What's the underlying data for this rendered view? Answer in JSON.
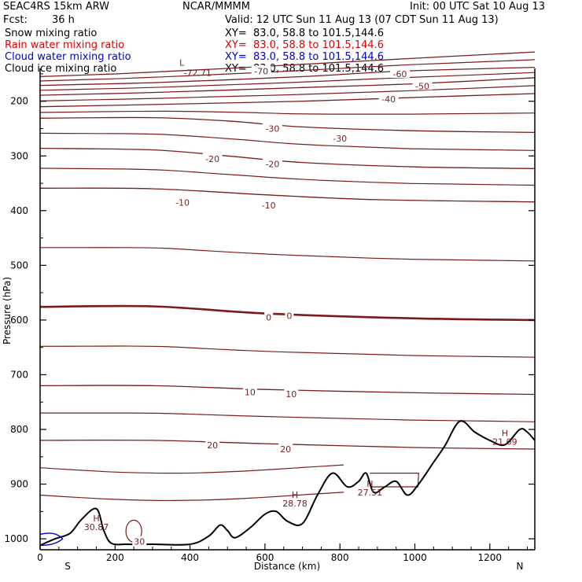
{
  "header": {
    "model": "SEAC4RS 15km ARW",
    "center": "NCAR/MMMM",
    "init": "Init: 00 UTC Sat 10 Aug 13",
    "fcst_label": "Fcst:",
    "fcst_value": "36 h",
    "valid": "Valid: 12 UTC Sun 11 Aug 13 (07 CDT Sun 11 Aug 13)",
    "fields": [
      {
        "name": "Snow mixing ratio",
        "xy": "XY=  83.0, 58.8 to 101.5,144.6",
        "color": "#000000"
      },
      {
        "name": "Rain water mixing ratio",
        "xy": "XY=  83.0, 58.8 to 101.5,144.6",
        "color": "#e00000"
      },
      {
        "name": "Cloud water mixing ratio",
        "xy": "XY=  83.0, 58.8 to 101.5,144.6",
        "color": "#0000cc"
      },
      {
        "name": "Cloud ice mixing ratio",
        "xy": "XY=  83.0, 58.8 to 101.5,144.6",
        "color": "#000000"
      }
    ]
  },
  "chart_data": {
    "type": "line",
    "subtype": "cross-section contour",
    "xlabel": "Distance (km)",
    "ylabel": "Pressure (hPa)",
    "xlim": [
      0,
      1320
    ],
    "ylim": [
      1020,
      140
    ],
    "y_inverted": true,
    "x_ticks": [
      0,
      200,
      400,
      600,
      800,
      1000,
      1200
    ],
    "y_ticks": [
      200,
      300,
      400,
      500,
      600,
      700,
      800,
      900,
      1000
    ],
    "endpoint_labels": {
      "left": "S",
      "right": "N"
    },
    "contour_color": "#7b1c1c",
    "terrain_color": "#000000",
    "isotherms": [
      {
        "label": "-70",
        "points": [
          [
            0,
            155
          ],
          [
            200,
            150
          ],
          [
            500,
            140
          ],
          [
            900,
            125
          ],
          [
            1320,
            110
          ]
        ]
      },
      {
        "label": "-60",
        "points": [
          [
            0,
            171
          ],
          [
            300,
            166
          ],
          [
            700,
            155
          ],
          [
            960,
            145
          ],
          [
            1320,
            138
          ]
        ]
      },
      {
        "label": "-50",
        "points": [
          [
            0,
            189
          ],
          [
            300,
            184
          ],
          [
            700,
            175
          ],
          [
            1000,
            168
          ],
          [
            1320,
            157
          ]
        ]
      },
      {
        "label": "-40",
        "points": [
          [
            0,
            210
          ],
          [
            300,
            206
          ],
          [
            700,
            200
          ],
          [
            1000,
            193
          ],
          [
            1320,
            186
          ]
        ]
      },
      {
        "label": "-30",
        "points": [
          [
            0,
            231
          ],
          [
            300,
            230
          ],
          [
            500,
            236
          ],
          [
            700,
            247
          ],
          [
            1000,
            254
          ],
          [
            1320,
            257
          ]
        ]
      },
      {
        "label": "-20",
        "points": [
          [
            0,
            286
          ],
          [
            300,
            289
          ],
          [
            500,
            300
          ],
          [
            700,
            312
          ],
          [
            1000,
            320
          ],
          [
            1320,
            323
          ]
        ]
      },
      {
        "label": "-10",
        "points": [
          [
            0,
            359
          ],
          [
            300,
            360
          ],
          [
            600,
            371
          ],
          [
            900,
            380
          ],
          [
            1320,
            384
          ]
        ]
      },
      {
        "label": "0",
        "bold": true,
        "points": [
          [
            0,
            576
          ],
          [
            300,
            575
          ],
          [
            600,
            588
          ],
          [
            1000,
            597
          ],
          [
            1320,
            600
          ]
        ]
      },
      {
        "label": "10",
        "points": [
          [
            0,
            720
          ],
          [
            300,
            720
          ],
          [
            600,
            727
          ],
          [
            1000,
            733
          ],
          [
            1320,
            736
          ]
        ]
      },
      {
        "label": "20",
        "points": [
          [
            0,
            820
          ],
          [
            300,
            820
          ],
          [
            600,
            826
          ],
          [
            1000,
            833
          ],
          [
            1320,
            836
          ]
        ]
      }
    ],
    "highs": [
      {
        "x": 150,
        "p": 968,
        "value": "30.87"
      },
      {
        "x": 680,
        "p": 925,
        "value": "28.78"
      },
      {
        "x": 880,
        "p": 905,
        "value": "27.51"
      },
      {
        "x": 1240,
        "p": 812,
        "value": "21.09"
      }
    ],
    "lows": [
      {
        "x": 420,
        "p": 138,
        "value": "-72.71"
      }
    ],
    "contour_labels": [
      {
        "text": "-70",
        "x": 590,
        "p": 145
      },
      {
        "text": "-60",
        "x": 960,
        "p": 150
      },
      {
        "text": "-50",
        "x": 1020,
        "p": 172
      },
      {
        "text": "-40",
        "x": 930,
        "p": 196
      },
      {
        "text": "-30",
        "x": 620,
        "p": 250
      },
      {
        "text": "-30",
        "x": 800,
        "p": 268
      },
      {
        "text": "-20",
        "x": 460,
        "p": 305
      },
      {
        "text": "-20",
        "x": 620,
        "p": 315
      },
      {
        "text": "-10",
        "x": 380,
        "p": 385
      },
      {
        "text": "-10",
        "x": 610,
        "p": 390
      },
      {
        "text": "0",
        "x": 610,
        "p": 595
      },
      {
        "text": "0",
        "x": 665,
        "p": 592
      },
      {
        "text": "10",
        "x": 560,
        "p": 732
      },
      {
        "text": "10",
        "x": 670,
        "p": 735
      },
      {
        "text": "20",
        "x": 460,
        "p": 829
      },
      {
        "text": "20",
        "x": 655,
        "p": 836
      },
      {
        "text": "30",
        "x": 265,
        "p": 1005
      }
    ]
  }
}
